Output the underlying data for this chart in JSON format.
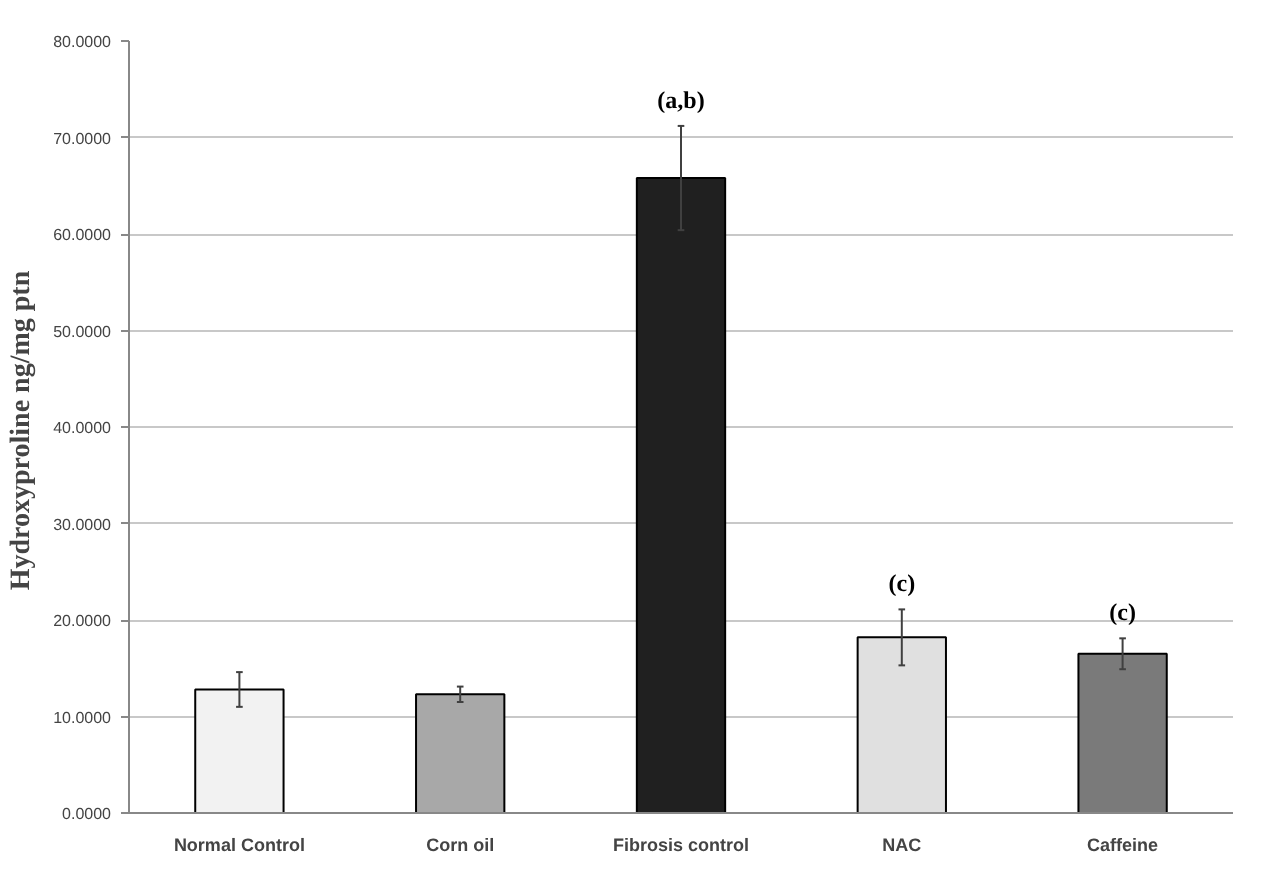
{
  "chart_data": {
    "type": "bar",
    "ylabel": "Hydroxyproline  ng/mg ptn",
    "categories": [
      "Normal Control",
      "Corn oil",
      "Fibrosis control",
      "NAC",
      "Caffeine"
    ],
    "values": [
      12.8,
      12.3,
      65.8,
      18.2,
      16.5
    ],
    "errors": [
      1.8,
      0.8,
      5.4,
      2.9,
      1.6
    ],
    "colors": [
      "#f2f2f2",
      "#a8a8a8",
      "#202020",
      "#e0e0e0",
      "#7a7a7a"
    ],
    "ylim": [
      0,
      80
    ],
    "yticks": [
      {
        "value": 0,
        "label": "0.0000"
      },
      {
        "value": 10,
        "label": "10.0000"
      },
      {
        "value": 20,
        "label": "20.0000"
      },
      {
        "value": 30,
        "label": "30.0000"
      },
      {
        "value": 40,
        "label": "40.0000"
      },
      {
        "value": 50,
        "label": "50.0000"
      },
      {
        "value": 60,
        "label": "60.0000"
      },
      {
        "value": 70,
        "label": "70.0000"
      },
      {
        "value": 80,
        "label": "80.0000"
      }
    ],
    "grid": "y",
    "value_labels": [
      null,
      null,
      "(a,b)",
      "(c)",
      "(c)"
    ]
  }
}
